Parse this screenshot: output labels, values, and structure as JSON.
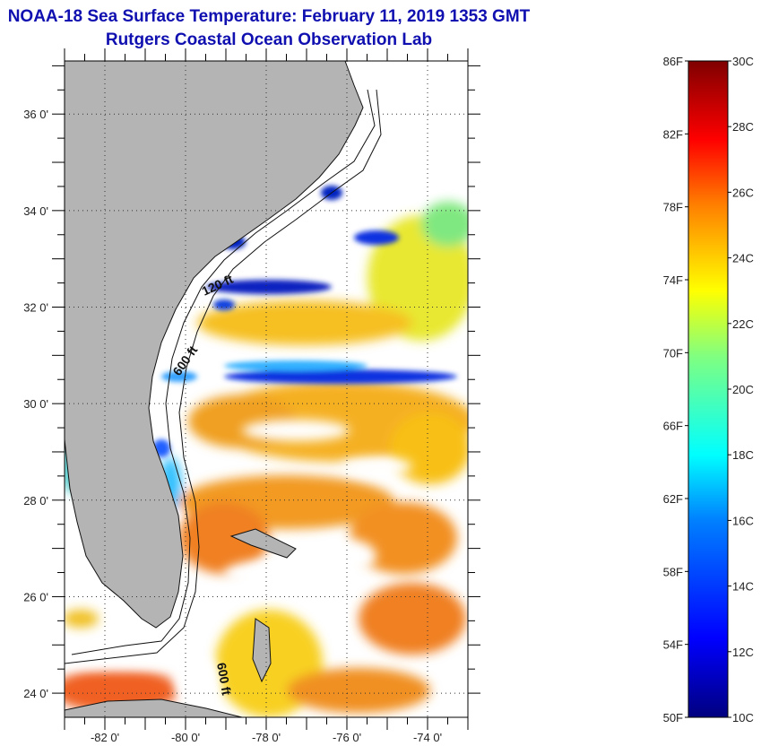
{
  "header": {
    "title": "NOAA-18 Sea Surface Temperature:  February 11, 2019 1353 GMT",
    "subtitle": "Rutgers Coastal Ocean Observation Lab"
  },
  "map": {
    "x_ticks": [
      "-82 0'",
      "-80 0'",
      "-78 0'",
      "-76 0'",
      "-74 0'"
    ],
    "x_tick_values": [
      -82,
      -80,
      -78,
      -76,
      -74
    ],
    "y_ticks": [
      "36 0'",
      "34 0'",
      "32 0'",
      "30 0'",
      "28 0'",
      "26 0'",
      "24 0'"
    ],
    "y_tick_values": [
      36,
      34,
      32,
      30,
      28,
      26,
      24
    ],
    "lon_range": [
      -83,
      -73
    ],
    "lat_range": [
      23.5,
      37.1
    ],
    "isobath_labels": [
      "120 ft",
      "600 ft",
      "600 ft"
    ],
    "land_color": "#b4b4b4",
    "no_data_color": "#ffffff"
  },
  "colorbar": {
    "fahrenheit_labels": [
      "86F",
      "82F",
      "78F",
      "74F",
      "70F",
      "66F",
      "62F",
      "58F",
      "54F",
      "50F"
    ],
    "fahrenheit_values": [
      86,
      82,
      78,
      74,
      70,
      66,
      62,
      58,
      54,
      50
    ],
    "celsius_labels": [
      "30C",
      "28C",
      "26C",
      "24C",
      "22C",
      "20C",
      "18C",
      "16C",
      "14C",
      "12C",
      "10C"
    ],
    "celsius_values": [
      30,
      28,
      26,
      24,
      22,
      20,
      18,
      16,
      14,
      12,
      10
    ],
    "range_c": [
      10,
      30
    ],
    "colors": [
      "#00007f",
      "#0000ff",
      "#0080ff",
      "#00ffff",
      "#80ff80",
      "#ffff00",
      "#ff8000",
      "#ff0000",
      "#7f0000"
    ]
  }
}
